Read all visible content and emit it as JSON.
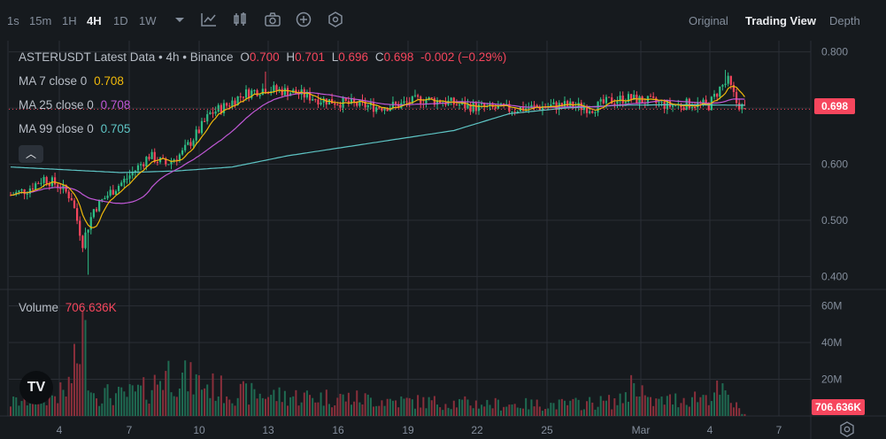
{
  "toolbar": {
    "intervals": [
      "1s",
      "15m",
      "1H",
      "4H",
      "1D",
      "1W"
    ],
    "active_interval": "4H",
    "views": [
      "Original",
      "Trading View",
      "Depth"
    ],
    "active_view": "Trading View",
    "icons": [
      "chevron-down-icon",
      "indicators-icon",
      "candle-style-icon",
      "camera-icon",
      "add-icon",
      "settings-hex-icon"
    ]
  },
  "legend": {
    "symbol": "ASTERUSDT Latest Data • 4h • Binance",
    "open_label": "O",
    "open": "0.700",
    "high_label": "H",
    "high": "0.701",
    "low_label": "L",
    "low": "0.696",
    "close_label": "C",
    "close": "0.698",
    "change": "-0.002 (−0.29%)",
    "ma7_label": "MA 7 close 0",
    "ma7_value": "0.708",
    "ma25_label": "MA 25 close 0",
    "ma25_value": "0.708",
    "ma99_label": "MA 99 close 0",
    "ma99_value": "0.705",
    "volume_label": "Volume",
    "volume_value": "706.636K"
  },
  "current_price": "0.698",
  "current_volume": "706.636K",
  "logo_text": "TV",
  "colors": {
    "up": "#2ebd85",
    "down": "#f6465d",
    "ma7": "#f0b90b",
    "ma25": "#c058d6",
    "ma99": "#5ec5c5",
    "bg": "#161a1e",
    "grid": "#2b2f36"
  },
  "chart_data": {
    "type": "candlestick",
    "price_axis_ticks": [
      "0.800",
      "0.700",
      "0.600",
      "0.500",
      "0.400"
    ],
    "price_range": [
      0.38,
      0.82
    ],
    "volume_axis_ticks": [
      "60M",
      "40M",
      "20M"
    ],
    "volume_range": [
      0,
      68
    ],
    "x_ticks": [
      "4",
      "7",
      "10",
      "13",
      "16",
      "19",
      "22",
      "25",
      "Mar",
      "4",
      "7"
    ],
    "candles_per_day": 6,
    "x_start_day_offset": -2.2,
    "price_anchors": [
      [
        0,
        0.545
      ],
      [
        6,
        0.555
      ],
      [
        12,
        0.575
      ],
      [
        18,
        0.56
      ],
      [
        22,
        0.54
      ],
      [
        26,
        0.46
      ],
      [
        30,
        0.52
      ],
      [
        36,
        0.55
      ],
      [
        42,
        0.575
      ],
      [
        50,
        0.615
      ],
      [
        56,
        0.6
      ],
      [
        62,
        0.62
      ],
      [
        68,
        0.66
      ],
      [
        72,
        0.69
      ],
      [
        78,
        0.705
      ],
      [
        84,
        0.725
      ],
      [
        92,
        0.735
      ],
      [
        102,
        0.728
      ],
      [
        112,
        0.715
      ],
      [
        122,
        0.708
      ],
      [
        132,
        0.702
      ],
      [
        140,
        0.705
      ],
      [
        148,
        0.716
      ],
      [
        156,
        0.712
      ],
      [
        164,
        0.704
      ],
      [
        172,
        0.7
      ],
      [
        180,
        0.698
      ],
      [
        190,
        0.702
      ],
      [
        200,
        0.705
      ],
      [
        210,
        0.7
      ],
      [
        216,
        0.712
      ],
      [
        222,
        0.718
      ],
      [
        230,
        0.712
      ],
      [
        238,
        0.704
      ],
      [
        246,
        0.708
      ],
      [
        252,
        0.705
      ],
      [
        256,
        0.735
      ],
      [
        259,
        0.748
      ],
      [
        262,
        0.71
      ],
      [
        265,
        0.698
      ]
    ],
    "ma99_anchors": [
      [
        0,
        0.595
      ],
      [
        20,
        0.59
      ],
      [
        40,
        0.585
      ],
      [
        60,
        0.588
      ],
      [
        80,
        0.595
      ],
      [
        100,
        0.615
      ],
      [
        120,
        0.63
      ],
      [
        140,
        0.645
      ],
      [
        160,
        0.66
      ],
      [
        180,
        0.69
      ],
      [
        200,
        0.7
      ],
      [
        220,
        0.705
      ],
      [
        240,
        0.706
      ],
      [
        265,
        0.705
      ]
    ],
    "volume_anchors": [
      [
        0,
        8
      ],
      [
        20,
        14
      ],
      [
        24,
        33
      ],
      [
        26,
        52
      ],
      [
        30,
        14
      ],
      [
        40,
        12
      ],
      [
        50,
        16
      ],
      [
        56,
        27
      ],
      [
        62,
        23
      ],
      [
        70,
        19
      ],
      [
        80,
        14
      ],
      [
        100,
        12
      ],
      [
        120,
        11
      ],
      [
        140,
        9
      ],
      [
        160,
        8
      ],
      [
        180,
        7
      ],
      [
        200,
        7
      ],
      [
        220,
        9
      ],
      [
        226,
        23
      ],
      [
        230,
        8
      ],
      [
        250,
        12
      ],
      [
        256,
        15
      ],
      [
        265,
        1
      ]
    ]
  }
}
